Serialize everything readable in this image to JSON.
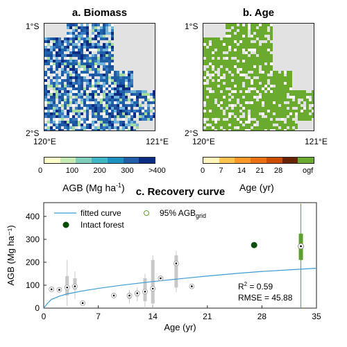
{
  "panels": {
    "biomass": {
      "title": "a. Biomass",
      "lat_top": "1°S",
      "lat_bottom": "2°S",
      "lon_left": "120°E",
      "lon_right": "121°E",
      "colorbar_ticks": [
        "0",
        "100",
        "200",
        "300",
        ">400"
      ],
      "colorbar_label_main": "AGB (Mg ha",
      "colorbar_label_sup": "-1",
      "colorbar_label_end": ")",
      "colors": [
        "#ffffcc",
        "#c7e9b4",
        "#7fcdbb",
        "#41b6c4",
        "#1d91c0",
        "#225ea8",
        "#0c2c84"
      ]
    },
    "age": {
      "title": "b. Age",
      "lat_top": "1°S",
      "lat_bottom": "2°S",
      "lon_left": "120°E",
      "lon_right": "121°E",
      "colorbar_ticks": [
        "0",
        "7",
        "14",
        "21",
        "28",
        "ogf"
      ],
      "colorbar_label": "Age (yr)",
      "colors": [
        "#fff7bc",
        "#fec44f",
        "#fe9929",
        "#ec7014",
        "#cc4c02",
        "#662506"
      ],
      "ogf_color": "#6aaa2e"
    }
  },
  "chart_data": {
    "type": "scatter",
    "title": "c. Recovery curve",
    "xlabel": "Age (yr)",
    "ylabel": "AGB (Mg ha⁻¹)",
    "xlim": [
      0,
      35
    ],
    "ylim": [
      0,
      460
    ],
    "xticks": [
      0,
      7,
      14,
      21,
      28,
      35
    ],
    "yticks": [
      0,
      100,
      200,
      300,
      400
    ],
    "fitted_curve": {
      "name": "fitted curve",
      "color": "#3a9bd5",
      "x": [
        0,
        0.5,
        1,
        2,
        3,
        5,
        7,
        10,
        14,
        18,
        21,
        25,
        28,
        32,
        35
      ],
      "y": [
        0,
        22,
        38,
        52,
        62,
        75,
        86,
        100,
        116,
        130,
        140,
        152,
        160,
        168,
        174
      ]
    },
    "age_class_medians": {
      "x": [
        1,
        2,
        3,
        4,
        5,
        9,
        11,
        12,
        13,
        14,
        15,
        17,
        19
      ],
      "y": [
        82,
        80,
        90,
        95,
        22,
        55,
        55,
        65,
        72,
        85,
        130,
        195,
        95
      ]
    },
    "boxes": [
      {
        "x": 3,
        "q1": 55,
        "q3": 140,
        "lo": 10,
        "hi": 210
      },
      {
        "x": 4,
        "q1": 80,
        "q3": 130,
        "lo": 40,
        "hi": 160
      },
      {
        "x": 11,
        "q1": 40,
        "q3": 65,
        "lo": 20,
        "hi": 80
      },
      {
        "x": 12,
        "q1": 50,
        "q3": 75,
        "lo": 30,
        "hi": 90
      },
      {
        "x": 13,
        "q1": 30,
        "q3": 130,
        "lo": 0,
        "hi": 150
      },
      {
        "x": 14,
        "q1": 20,
        "q3": 210,
        "lo": 0,
        "hi": 230
      },
      {
        "x": 17,
        "q1": 90,
        "q3": 230,
        "lo": 70,
        "hi": 250
      }
    ],
    "intact_forest": {
      "name": "Intact forest",
      "x": 27,
      "y": 275,
      "color": "#0b4d0b"
    },
    "agb_grid": {
      "name_main": "95% AGB",
      "name_sub": "grid",
      "x": 33,
      "median": 270,
      "q1": 210,
      "q3": 325,
      "lo": 0,
      "hi": 455,
      "color": "#5aa02c"
    },
    "stats": {
      "r2_main": "R",
      "r2_sup": "2",
      "r2_value": " = 0.59",
      "rmse": "RMSE = 45.88"
    }
  }
}
